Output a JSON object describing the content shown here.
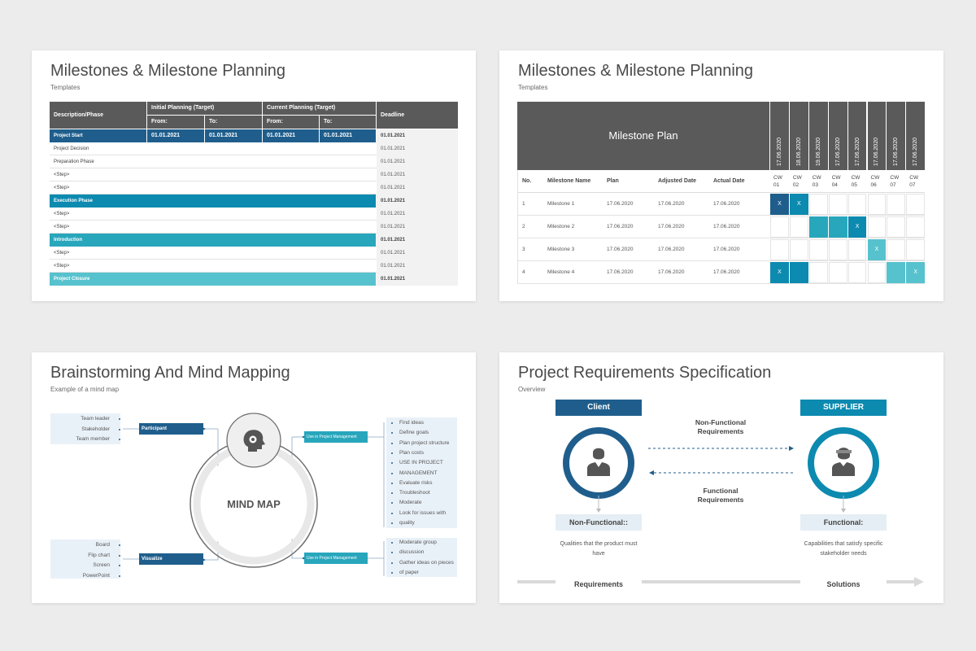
{
  "colors": {
    "dark_blue": "#1f5e8c",
    "teal": "#0c8ab0",
    "mid_teal": "#28a6bc",
    "light_teal": "#56c2cd",
    "header_grey": "#5a5a5a",
    "light_box": "#e9f1f8"
  },
  "slide1": {
    "title": "Milestones & Milestone Planning",
    "subtitle": "Templates",
    "headers": {
      "description": "Description/Phase",
      "initial": "Initial Planning (Target)",
      "current": "Current Planning (Target)",
      "deadline": "Deadline",
      "from": "From:",
      "to": "To:"
    },
    "rows": [
      {
        "label": "Project Start",
        "style": "dark",
        "from1": "01.01.2021",
        "to1": "01.01.2021",
        "from2": "01.01.2021",
        "to2": "01.01.2021",
        "deadline": "01.01.2021"
      },
      {
        "label": "Project Decision",
        "style": "plain",
        "deadline": "01.01.2021"
      },
      {
        "label": "Preparation Phase",
        "style": "plain",
        "deadline": "01.01.2021"
      },
      {
        "label": "<Step>",
        "style": "plain",
        "deadline": "01.01.2021"
      },
      {
        "label": "<Step>",
        "style": "plain",
        "deadline": "01.01.2021"
      },
      {
        "label": "Execution Phase",
        "style": "teal",
        "deadline": "01.01.2021"
      },
      {
        "label": "<Step>",
        "style": "plain",
        "deadline": "01.01.2021"
      },
      {
        "label": "<Step>",
        "style": "plain",
        "deadline": "01.01.2021"
      },
      {
        "label": "Introduction",
        "style": "midteal",
        "deadline": "01.01.2021"
      },
      {
        "label": "<Step>",
        "style": "plain",
        "deadline": "01.01.2021"
      },
      {
        "label": "<Step>",
        "style": "plain",
        "deadline": "01.01.2021"
      },
      {
        "label": "Project Closure",
        "style": "lightteal",
        "deadline": "01.01.2021"
      }
    ]
  },
  "slide2": {
    "title": "Milestones & Milestone Planning",
    "subtitle": "Templates",
    "plan_title": "Milestone Plan",
    "date_headers": [
      "17.06.2020",
      "18.06.2020",
      "19.06.2020",
      "17.06.2020",
      "17.06.2020",
      "17.06.2020",
      "17.06.2020",
      "17.06.2020"
    ],
    "col_headers": [
      "No.",
      "Milestone Name",
      "Plan",
      "Adjusted Date",
      "Actual Date"
    ],
    "cw_headers": [
      [
        "CW",
        "01"
      ],
      [
        "CW",
        "02"
      ],
      [
        "CW",
        "03"
      ],
      [
        "CW",
        "04"
      ],
      [
        "CW",
        "05"
      ],
      [
        "CW",
        "06"
      ],
      [
        "CW",
        "07"
      ],
      [
        "CW",
        "07"
      ]
    ],
    "rows": [
      {
        "no": "1",
        "name": "Milestone 1",
        "plan": "17.06.2020",
        "adjusted": "17.06.2020",
        "actual": "17.06.2020",
        "cells": [
          {
            "fill": "dark",
            "mark": "X"
          },
          {
            "fill": "teal",
            "mark": "X"
          },
          {
            "fill": "",
            "mark": ""
          },
          {
            "fill": "",
            "mark": ""
          },
          {
            "fill": "",
            "mark": ""
          },
          {
            "fill": "",
            "mark": ""
          },
          {
            "fill": "",
            "mark": ""
          },
          {
            "fill": "",
            "mark": ""
          }
        ]
      },
      {
        "no": "2",
        "name": "Milestone 2",
        "plan": "17.06.2020",
        "adjusted": "17.06.2020",
        "actual": "17.06.2020",
        "cells": [
          {
            "fill": "",
            "mark": ""
          },
          {
            "fill": "",
            "mark": ""
          },
          {
            "fill": "midteal",
            "mark": ""
          },
          {
            "fill": "midteal",
            "mark": ""
          },
          {
            "fill": "teal",
            "mark": "X"
          },
          {
            "fill": "",
            "mark": ""
          },
          {
            "fill": "",
            "mark": ""
          },
          {
            "fill": "",
            "mark": ""
          }
        ]
      },
      {
        "no": "3",
        "name": "Milestone 3",
        "plan": "17.06.2020",
        "adjusted": "17.06.2020",
        "actual": "17.06.2020",
        "cells": [
          {
            "fill": "",
            "mark": ""
          },
          {
            "fill": "",
            "mark": ""
          },
          {
            "fill": "",
            "mark": ""
          },
          {
            "fill": "",
            "mark": ""
          },
          {
            "fill": "",
            "mark": ""
          },
          {
            "fill": "lightteal",
            "mark": "X"
          },
          {
            "fill": "",
            "mark": ""
          },
          {
            "fill": "",
            "mark": ""
          }
        ]
      },
      {
        "no": "4",
        "name": "Milestone 4",
        "plan": "17.06.2020",
        "adjusted": "17.06.2020",
        "actual": "17.06.2020",
        "cells": [
          {
            "fill": "teal",
            "mark": "X"
          },
          {
            "fill": "teal",
            "mark": ""
          },
          {
            "fill": "",
            "mark": ""
          },
          {
            "fill": "",
            "mark": ""
          },
          {
            "fill": "",
            "mark": ""
          },
          {
            "fill": "",
            "mark": ""
          },
          {
            "fill": "lightteal",
            "mark": ""
          },
          {
            "fill": "lightteal",
            "mark": "X"
          }
        ]
      }
    ]
  },
  "slide3": {
    "title": "Brainstorming And Mind Mapping",
    "subtitle": "Example of a mind map",
    "center": "MIND MAP",
    "participant": {
      "label": "Participant",
      "items": [
        "Team leader",
        "Stakeholder",
        "Team member"
      ]
    },
    "visualize": {
      "label": "Visualize",
      "items": [
        "Board",
        "Flip chart",
        "Screen",
        "PowerPoint"
      ]
    },
    "pm_top": {
      "label": "Use in Project Management",
      "items": [
        "Find ideas",
        "Define goals",
        "Plan project structure",
        "Plan costs",
        "USE IN PROJECT",
        "MANAGEMENT",
        "Evaluate risks",
        "Troubleshoot",
        "Moderate",
        "Look for issues with",
        "quality"
      ]
    },
    "pm_bottom": {
      "label": "Use in Project Management",
      "items": [
        "Moderate group",
        "discussion",
        "Gather ideas on pieces",
        "of paper"
      ]
    }
  },
  "slide4": {
    "title": "Project Requirements Specification",
    "subtitle": "Overview",
    "client": "Client",
    "supplier": "SUPPLIER",
    "non_functional_req": [
      "Non-Functional",
      "Requirements"
    ],
    "functional_req": [
      "Functional",
      "Requirements"
    ],
    "client_label": "Non-Functional::",
    "supplier_label": "Functional:",
    "client_desc": [
      "Qualities that the product must",
      "have"
    ],
    "supplier_desc": [
      "Capabilities that satisfy specific",
      "stakeholder needs"
    ],
    "requirements": "Requirements",
    "solutions": "Solutions"
  }
}
